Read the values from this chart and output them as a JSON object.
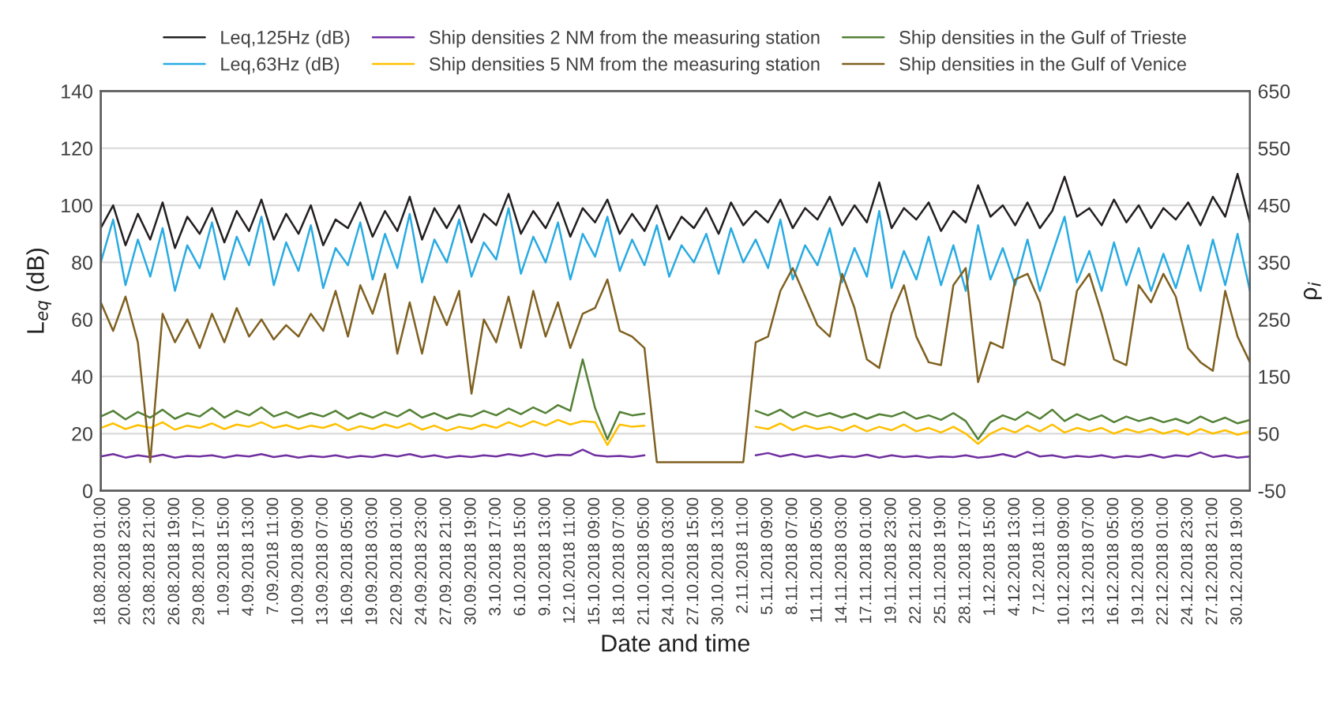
{
  "chart_data": {
    "type": "line",
    "xlabel": "Date and time",
    "ylabel": "L$_{eq}$ (dB)",
    "y2label": "ρ$_{i}$",
    "categories": [
      "18.08.2018 01:00",
      null,
      "20.08.2018 23:00",
      null,
      "23.08.2018 21:00",
      null,
      "26.08.2018 19:00",
      null,
      "29.08.2018 17:00",
      null,
      "1.09.2018 15:00",
      null,
      "4.09.2018 13:00",
      null,
      "7.09.2018 11:00",
      null,
      "10.09.2018 09:00",
      null,
      "13.09.2018 07:00",
      null,
      "16.09.2018 05:00",
      null,
      "19.09.2018 03:00",
      null,
      "22.09.2018 01:00",
      null,
      "24.09.2018 23:00",
      null,
      "27.09.2018 21:00",
      null,
      "30.09.2018 19:00",
      null,
      "3.10.2018 17:00",
      null,
      "6.10.2018 15:00",
      null,
      "9.10.2018 13:00",
      null,
      "12.10.2018 11:00",
      null,
      "15.10.2018 09:00",
      null,
      "18.10.2018 07:00",
      null,
      "21.10.2018 05:00",
      null,
      "24.10.2018 03:00",
      null,
      "27.10.2018 15:00",
      null,
      "30.10.2018 13:00",
      null,
      "2.11.2018 11:00",
      null,
      "5.11.2018 09:00",
      null,
      "8.11.2018 07:00",
      null,
      "11.11.2018 05:00",
      null,
      "14.11.2018 03:00",
      null,
      "17.11.2018 01:00",
      null,
      "19.11.2018 23:00",
      null,
      "22.11.2018 21:00",
      null,
      "25.11.2018 19:00",
      null,
      "28.11.2018 17:00",
      null,
      "1.12.2018 15:00",
      null,
      "4.12.2018 13:00",
      null,
      "7.12.2018 11:00",
      null,
      "10.12.2018 09:00",
      null,
      "13.12.2018 07:00",
      null,
      "16.12.2018 05:00",
      null,
      "19.12.2018 03:00",
      null,
      "22.12.2018 01:00",
      null,
      "24.12.2018 23:00",
      null,
      "27.12.2018 21:00",
      null,
      "30.12.2018 19:00",
      null
    ],
    "ylim": [
      0,
      140
    ],
    "yticks": [
      0,
      20,
      40,
      60,
      80,
      100,
      120,
      140
    ],
    "y2lim": [
      -50,
      650
    ],
    "y2ticks": [
      -50,
      50,
      150,
      250,
      350,
      450,
      550,
      650
    ],
    "grid": "y",
    "legend": "top",
    "series": [
      {
        "name": "Leq,125Hz (dB)",
        "color": "#231f20",
        "values": [
          92,
          100,
          86,
          97,
          88,
          101,
          85,
          96,
          90,
          99,
          87,
          98,
          91,
          102,
          88,
          97,
          90,
          100,
          86,
          95,
          92,
          101,
          89,
          98,
          91,
          103,
          88,
          99,
          92,
          100,
          87,
          97,
          93,
          104,
          90,
          98,
          92,
          101,
          89,
          99,
          94,
          102,
          90,
          97,
          91,
          100,
          88,
          96,
          92,
          99,
          90,
          101,
          93,
          98,
          94,
          102,
          92,
          99,
          95,
          103,
          93,
          100,
          94,
          108,
          92,
          99,
          95,
          101,
          91,
          98,
          94,
          107,
          96,
          100,
          93,
          101,
          92,
          98,
          110,
          96,
          99,
          93,
          102,
          94,
          100,
          92,
          99,
          95,
          101,
          93,
          103,
          96,
          111,
          94
        ]
      },
      {
        "name": "Leq,63Hz (dB)",
        "color": "#29abe2",
        "values": [
          80,
          95,
          72,
          88,
          75,
          92,
          70,
          86,
          78,
          94,
          74,
          89,
          79,
          96,
          72,
          87,
          77,
          93,
          71,
          85,
          79,
          94,
          74,
          90,
          78,
          97,
          73,
          88,
          80,
          95,
          75,
          87,
          81,
          99,
          76,
          89,
          80,
          94,
          74,
          90,
          82,
          96,
          77,
          88,
          79,
          93,
          75,
          86,
          80,
          90,
          76,
          92,
          80,
          88,
          78,
          95,
          74,
          86,
          79,
          92,
          73,
          85,
          75,
          98,
          71,
          84,
          74,
          89,
          72,
          86,
          70,
          93,
          74,
          85,
          72,
          88,
          70,
          83,
          96,
          73,
          84,
          70,
          87,
          72,
          85,
          70,
          83,
          71,
          86,
          70,
          88,
          72,
          90,
          70
        ]
      },
      {
        "name": "Ship densities 2 NM from the measuring station",
        "color": "#7030a0",
        "axis": "y2",
        "values": [
          10,
          14,
          8,
          12,
          9,
          13,
          8,
          11,
          10,
          12,
          8,
          12,
          10,
          14,
          9,
          12,
          8,
          11,
          9,
          12,
          8,
          11,
          9,
          13,
          10,
          14,
          9,
          12,
          8,
          11,
          9,
          12,
          10,
          14,
          11,
          15,
          10,
          13,
          12,
          22,
          12,
          10,
          11,
          9,
          12,
          null,
          null,
          null,
          null,
          null,
          null,
          null,
          null,
          12,
          16,
          10,
          14,
          9,
          12,
          8,
          11,
          9,
          13,
          8,
          12,
          9,
          11,
          8,
          10,
          9,
          12,
          8,
          10,
          14,
          9,
          18,
          10,
          12,
          8,
          11,
          9,
          12,
          8,
          11,
          9,
          13,
          8,
          12,
          10,
          17,
          9,
          12,
          8,
          10
        ]
      },
      {
        "name": "Ship densities 5 NM from the measuring station",
        "color": "#ffc000",
        "axis": "y2",
        "values": [
          60,
          68,
          58,
          65,
          60,
          70,
          57,
          64,
          60,
          68,
          58,
          66,
          62,
          70,
          60,
          65,
          58,
          64,
          60,
          67,
          56,
          63,
          58,
          66,
          60,
          68,
          57,
          64,
          55,
          62,
          58,
          66,
          60,
          70,
          62,
          72,
          64,
          74,
          66,
          72,
          70,
          30,
          66,
          62,
          64,
          null,
          null,
          null,
          null,
          null,
          null,
          null,
          null,
          62,
          58,
          68,
          56,
          64,
          58,
          62,
          55,
          64,
          54,
          62,
          56,
          66,
          54,
          60,
          52,
          62,
          50,
          32,
          50,
          60,
          52,
          64,
          54,
          66,
          52,
          60,
          54,
          60,
          50,
          58,
          52,
          58,
          50,
          56,
          48,
          58,
          50,
          56,
          48,
          54
        ]
      },
      {
        "name": "Ship densities in the Gulf of Trieste",
        "color": "#538135",
        "axis": "y2",
        "values": [
          80,
          90,
          75,
          88,
          78,
          92,
          76,
          86,
          80,
          95,
          78,
          90,
          82,
          96,
          80,
          88,
          78,
          86,
          80,
          90,
          76,
          86,
          78,
          88,
          80,
          92,
          78,
          86,
          76,
          84,
          80,
          90,
          82,
          94,
          84,
          96,
          86,
          100,
          90,
          180,
          95,
          40,
          88,
          82,
          85,
          null,
          null,
          null,
          null,
          null,
          null,
          null,
          null,
          90,
          82,
          92,
          78,
          88,
          80,
          86,
          78,
          85,
          76,
          84,
          80,
          88,
          76,
          82,
          74,
          86,
          72,
          40,
          70,
          82,
          74,
          88,
          76,
          92,
          72,
          84,
          74,
          82,
          70,
          80,
          72,
          78,
          70,
          76,
          68,
          80,
          70,
          78,
          68,
          74
        ]
      },
      {
        "name": "Ship densities in the Gulf of Venice",
        "color": "#7f6020",
        "axis": "y2",
        "values": [
          280,
          230,
          290,
          210,
          0,
          260,
          210,
          250,
          200,
          260,
          210,
          270,
          220,
          250,
          215,
          240,
          220,
          260,
          230,
          300,
          220,
          310,
          260,
          330,
          190,
          280,
          190,
          290,
          240,
          300,
          120,
          250,
          210,
          290,
          200,
          300,
          220,
          280,
          200,
          260,
          270,
          320,
          230,
          220,
          200,
          0,
          0,
          0,
          0,
          0,
          0,
          0,
          0,
          210,
          220,
          300,
          340,
          290,
          240,
          220,
          330,
          270,
          180,
          165,
          260,
          310,
          220,
          175,
          170,
          310,
          340,
          140,
          210,
          200,
          320,
          330,
          280,
          180,
          170,
          300,
          330,
          260,
          180,
          170,
          310,
          280,
          330,
          290,
          200,
          175,
          160,
          300,
          220,
          175
        ]
      }
    ]
  }
}
